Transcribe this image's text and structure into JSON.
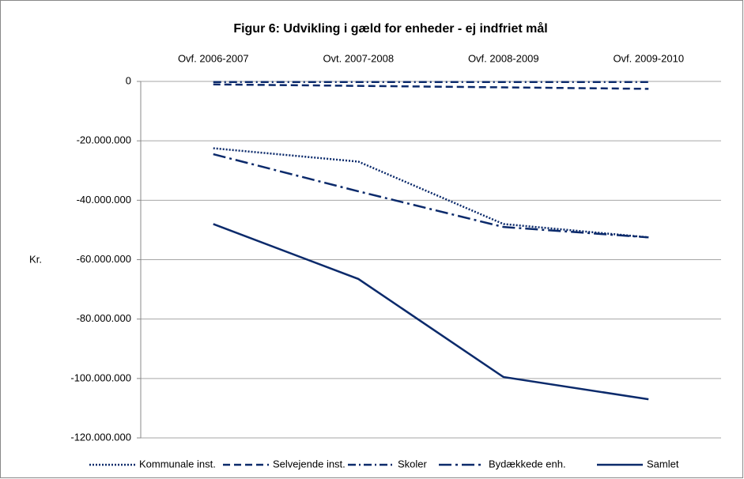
{
  "chart_data": {
    "type": "line",
    "title": "Figur 6: Udvikling i gæld for enheder - ej indfriet mål",
    "y_label": "Kr.",
    "categories": [
      "Ovf. 2006-2007",
      "Ovt. 2007-2008",
      "Ovf. 2008-2009",
      "Ovf. 2009-2010"
    ],
    "series": [
      {
        "name": "Kommunale inst.",
        "color": "#0b2a6b",
        "dash": "dotted",
        "values": [
          -22500000,
          -27000000,
          -48000000,
          -52500000
        ]
      },
      {
        "name": "Selvejende inst.",
        "color": "#0b2a6b",
        "dash": "dashed",
        "values": [
          -1000000,
          -1500000,
          -2000000,
          -2500000
        ]
      },
      {
        "name": "Skoler",
        "color": "#0b2a6b",
        "dash": "dash-dot",
        "values": [
          -200000,
          -200000,
          -200000,
          -200000
        ]
      },
      {
        "name": "Bydækkede enh.",
        "color": "#0b2a6b",
        "dash": "long-dash-dot",
        "values": [
          -24500000,
          -37000000,
          -49000000,
          -52500000
        ]
      },
      {
        "name": "Samlet",
        "color": "#0b2a6b",
        "dash": "solid",
        "values": [
          -48000000,
          -66500000,
          -99500000,
          -107000000
        ]
      }
    ],
    "ylim": [
      -120000000,
      0
    ],
    "yticks": [
      0,
      {
        "value": -20000000,
        "label": "-20.000.000"
      },
      {
        "value": -40000000,
        "label": "-40.000.000"
      },
      {
        "value": -60000000,
        "label": "-60.000.000"
      },
      {
        "value": -80000000,
        "label": "-80.000.000"
      },
      {
        "value": -100000000,
        "label": "-100.000.000"
      },
      {
        "value": -120000000,
        "label": "-120.000.000"
      }
    ],
    "grid": true,
    "legend": "bottom"
  }
}
